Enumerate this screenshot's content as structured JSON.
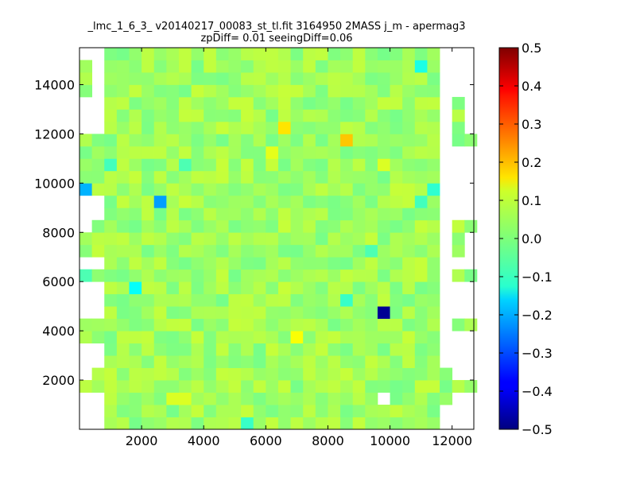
{
  "chart_data": {
    "type": "heatmap",
    "title": "_lmc_1_6_3_ v20140217_00083_st_tl.fit 3164950 2MASS j_m - apermag3",
    "subtitle": "zpDiff= 0.01 seeingDiff=0.06",
    "xlim": [
      0,
      12700
    ],
    "ylim": [
      0,
      15500
    ],
    "x_ticks": [
      2000,
      4000,
      6000,
      8000,
      10000,
      12000
    ],
    "x_tick_labels": [
      "2000",
      "4000",
      "6000",
      "8000",
      "10000",
      "12000"
    ],
    "y_ticks": [
      2000,
      4000,
      6000,
      8000,
      10000,
      12000,
      14000
    ],
    "y_tick_labels": [
      "2000",
      "4000",
      "6000",
      "8000",
      "10000",
      "12000",
      "14000"
    ],
    "colorbar": {
      "colormap": "jet",
      "vmin": -0.5,
      "vmax": 0.5,
      "ticks": [
        0.5,
        0.4,
        0.3,
        0.2,
        0.1,
        0.0,
        -0.1,
        -0.2,
        -0.3,
        -0.4,
        -0.5
      ],
      "tick_labels": [
        "0.5",
        "0.4",
        "0.3",
        "0.2",
        "0.1",
        "0.0",
        "−0.1",
        "−0.2",
        "−0.3",
        "−0.4",
        "−0.5"
      ]
    },
    "grid": {
      "cell_width": 400,
      "cell_height": 500,
      "n_cols": 32,
      "n_rows": 31,
      "base_value": 0.03,
      "notable_cells": [
        {
          "x": 9800,
          "y": 4750,
          "value": -0.48
        },
        {
          "x": 2600,
          "y": 9250,
          "value": -0.22
        },
        {
          "x": 200,
          "y": 9750,
          "value": -0.2
        },
        {
          "x": 11600,
          "y": 9250,
          "value": -0.17
        },
        {
          "x": 11600,
          "y": 13250,
          "value": -0.12
        },
        {
          "x": 10800,
          "y": 14750,
          "value": -0.1
        },
        {
          "x": 1800,
          "y": 5750,
          "value": -0.12
        },
        {
          "x": 8600,
          "y": 5250,
          "value": -0.07
        },
        {
          "x": 200,
          "y": 6250,
          "value": -0.05
        },
        {
          "x": 5400,
          "y": 250,
          "value": -0.07
        },
        {
          "x": 11200,
          "y": 9750,
          "value": -0.08
        },
        {
          "x": 1000,
          "y": 10750,
          "value": -0.06
        },
        {
          "x": 3400,
          "y": 10750,
          "value": -0.05
        },
        {
          "x": 10800,
          "y": 9250,
          "value": -0.06
        },
        {
          "x": 9400,
          "y": 7250,
          "value": -0.05
        },
        {
          "x": 6400,
          "y": 12250,
          "value": 0.15
        },
        {
          "x": 8600,
          "y": 11750,
          "value": 0.18
        },
        {
          "x": 7000,
          "y": 3750,
          "value": 0.12
        },
        {
          "x": 6000,
          "y": 11250,
          "value": 0.1
        },
        {
          "x": 3000,
          "y": 1250,
          "value": 0.09
        },
        {
          "x": 3400,
          "y": 1250,
          "value": 0.09
        },
        {
          "x": 9800,
          "y": 10750,
          "value": 0.09
        }
      ]
    }
  }
}
